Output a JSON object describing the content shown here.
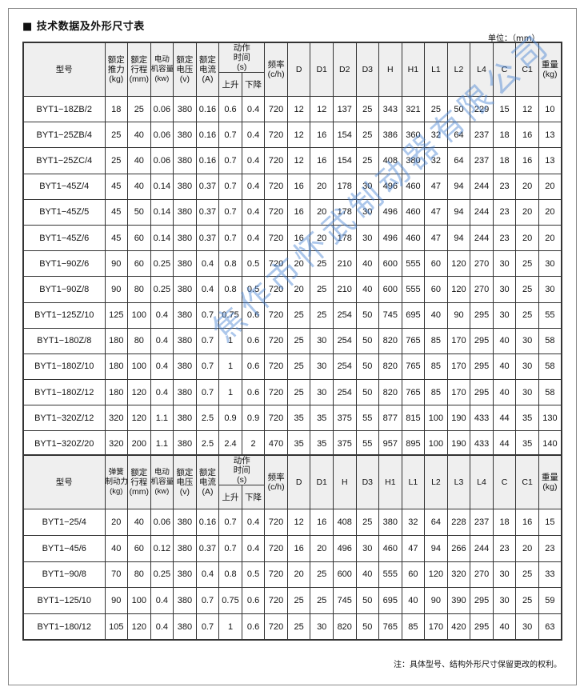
{
  "title": "■ 技术数据及外形尺寸表",
  "unit": "单位：（mm）",
  "watermark": "焦作市怀武制动器有限公司",
  "table1": {
    "headers": {
      "model": "型号",
      "thrust": "额定推力(kg)",
      "stroke": "额定行程(mm)",
      "motor": "电动机容量(kw)",
      "voltage": "额定电压(v)",
      "current": "额定电流(A)",
      "action_time": "动作时间(s)",
      "rise": "上升",
      "fall": "下降",
      "freq": "频率(c/h)",
      "dims": [
        "D",
        "D1",
        "D2",
        "D3",
        "H",
        "H1",
        "L1",
        "L2",
        "L4",
        "C",
        "C1"
      ],
      "weight": "重量(kg)"
    },
    "rows": [
      [
        "BYT1−18ZB/2",
        "18",
        "25",
        "0.06",
        "380",
        "0.16",
        "0.6",
        "0.4",
        "720",
        "12",
        "12",
        "137",
        "25",
        "343",
        "321",
        "25",
        "50",
        "229",
        "15",
        "12",
        "10"
      ],
      [
        "BYT1−25ZB/4",
        "25",
        "40",
        "0.06",
        "380",
        "0.16",
        "0.7",
        "0.4",
        "720",
        "12",
        "16",
        "154",
        "25",
        "386",
        "360",
        "32",
        "64",
        "237",
        "18",
        "16",
        "13"
      ],
      [
        "BYT1−25ZC/4",
        "25",
        "40",
        "0.06",
        "380",
        "0.16",
        "0.7",
        "0.4",
        "720",
        "12",
        "16",
        "154",
        "25",
        "408",
        "380",
        "32",
        "64",
        "237",
        "18",
        "16",
        "13"
      ],
      [
        "BYT1−45Z/4",
        "45",
        "40",
        "0.14",
        "380",
        "0.37",
        "0.7",
        "0.4",
        "720",
        "16",
        "20",
        "178",
        "30",
        "496",
        "460",
        "47",
        "94",
        "244",
        "23",
        "20",
        "20"
      ],
      [
        "BYT1−45Z/5",
        "45",
        "50",
        "0.14",
        "380",
        "0.37",
        "0.7",
        "0.4",
        "720",
        "16",
        "20",
        "178",
        "30",
        "496",
        "460",
        "47",
        "94",
        "244",
        "23",
        "20",
        "20"
      ],
      [
        "BYT1−45Z/6",
        "45",
        "60",
        "0.14",
        "380",
        "0.37",
        "0.7",
        "0.4",
        "720",
        "16",
        "20",
        "178",
        "30",
        "496",
        "460",
        "47",
        "94",
        "244",
        "23",
        "20",
        "20"
      ],
      [
        "BYT1−90Z/6",
        "90",
        "60",
        "0.25",
        "380",
        "0.4",
        "0.8",
        "0.5",
        "720",
        "20",
        "25",
        "210",
        "40",
        "600",
        "555",
        "60",
        "120",
        "270",
        "30",
        "25",
        "30"
      ],
      [
        "BYT1−90Z/8",
        "90",
        "80",
        "0.25",
        "380",
        "0.4",
        "0.8",
        "0.5",
        "720",
        "20",
        "25",
        "210",
        "40",
        "600",
        "555",
        "60",
        "120",
        "270",
        "30",
        "25",
        "30"
      ],
      [
        "BYT1−125Z/10",
        "125",
        "100",
        "0.4",
        "380",
        "0.7",
        "0.75",
        "0.6",
        "720",
        "25",
        "25",
        "254",
        "50",
        "745",
        "695",
        "40",
        "90",
        "295",
        "30",
        "25",
        "55"
      ],
      [
        "BYT1−180Z/8",
        "180",
        "80",
        "0.4",
        "380",
        "0.7",
        "1",
        "0.6",
        "720",
        "25",
        "30",
        "254",
        "50",
        "820",
        "765",
        "85",
        "170",
        "295",
        "40",
        "30",
        "58"
      ],
      [
        "BYT1−180Z/10",
        "180",
        "100",
        "0.4",
        "380",
        "0.7",
        "1",
        "0.6",
        "720",
        "25",
        "30",
        "254",
        "50",
        "820",
        "765",
        "85",
        "170",
        "295",
        "40",
        "30",
        "58"
      ],
      [
        "BYT1−180Z/12",
        "180",
        "120",
        "0.4",
        "380",
        "0.7",
        "1",
        "0.6",
        "720",
        "25",
        "30",
        "254",
        "50",
        "820",
        "765",
        "85",
        "170",
        "295",
        "40",
        "30",
        "58"
      ],
      [
        "BYT1−320Z/12",
        "320",
        "120",
        "1.1",
        "380",
        "2.5",
        "0.9",
        "0.9",
        "720",
        "35",
        "35",
        "375",
        "55",
        "877",
        "815",
        "100",
        "190",
        "433",
        "44",
        "35",
        "130"
      ],
      [
        "BYT1−320Z/20",
        "320",
        "200",
        "1.1",
        "380",
        "2.5",
        "2.4",
        "2",
        "470",
        "35",
        "35",
        "375",
        "55",
        "957",
        "895",
        "100",
        "190",
        "433",
        "44",
        "35",
        "140"
      ]
    ]
  },
  "table2": {
    "headers": {
      "model": "型号",
      "thrust": "弹簧制动力(kg)",
      "stroke": "额定行程(mm)",
      "motor": "电动机容量(kw)",
      "voltage": "额定电压(v)",
      "current": "额定电流(A)",
      "action_time": "动作时间(s)",
      "rise": "上升",
      "fall": "下降",
      "freq": "频率(c/h)",
      "dims": [
        "D",
        "D1",
        "H",
        "D3",
        "H1",
        "L1",
        "L2",
        "L3",
        "L4",
        "C",
        "C1"
      ],
      "weight": "重量(kg)"
    },
    "rows": [
      [
        "BYT1−25/4",
        "20",
        "40",
        "0.06",
        "380",
        "0.16",
        "0.7",
        "0.4",
        "720",
        "12",
        "16",
        "408",
        "25",
        "380",
        "32",
        "64",
        "228",
        "237",
        "18",
        "16",
        "15"
      ],
      [
        "BYT1−45/6",
        "40",
        "60",
        "0.12",
        "380",
        "0.37",
        "0.7",
        "0.4",
        "720",
        "16",
        "20",
        "496",
        "30",
        "460",
        "47",
        "94",
        "266",
        "244",
        "23",
        "20",
        "23"
      ],
      [
        "BYT1−90/8",
        "70",
        "80",
        "0.25",
        "380",
        "0.4",
        "0.8",
        "0.5",
        "720",
        "20",
        "25",
        "600",
        "40",
        "555",
        "60",
        "120",
        "320",
        "270",
        "30",
        "25",
        "33"
      ],
      [
        "BYT1−125/10",
        "90",
        "100",
        "0.4",
        "380",
        "0.7",
        "0.75",
        "0.6",
        "720",
        "25",
        "25",
        "745",
        "50",
        "695",
        "40",
        "90",
        "390",
        "295",
        "30",
        "25",
        "59"
      ],
      [
        "BYT1−180/12",
        "105",
        "120",
        "0.4",
        "380",
        "0.7",
        "1",
        "0.6",
        "720",
        "25",
        "30",
        "820",
        "50",
        "765",
        "85",
        "170",
        "420",
        "295",
        "40",
        "30",
        "63"
      ]
    ]
  },
  "footnote": "注：具体型号、结构外形尺寸保留更改的权利。"
}
